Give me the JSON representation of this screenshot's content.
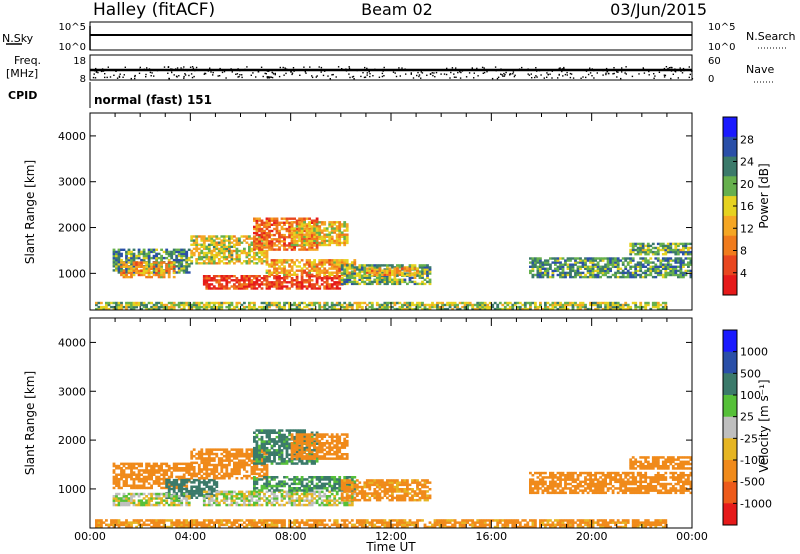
{
  "header": {
    "station": "Halley (fitACF)",
    "beam": "Beam 02",
    "date": "03/Jun/2015"
  },
  "status": {
    "nsky_label": "N.Sky",
    "nsearch_label": "N.Search",
    "nsky_ticks": [
      "10^5",
      "10^0"
    ],
    "nsearch_ticks": [
      "10^5",
      "10^0"
    ],
    "freq_label_1": "Freq.",
    "freq_label_2": "[MHz]",
    "freq_ticks": [
      "18",
      "8"
    ],
    "nave_label": "Nave",
    "nave_ticks": [
      "60",
      "0"
    ],
    "cpid_label": "CPID",
    "cpid_text": "normal (fast) 151"
  },
  "colors": {
    "power": [
      "#1a1aff",
      "#2a4fa8",
      "#3b7a6a",
      "#66b04d",
      "#e6d21f",
      "#f5a623",
      "#f07b1c",
      "#e8461f",
      "#e61a1a"
    ],
    "velocity": [
      "#1a1aff",
      "#2a4fa8",
      "#3b7a6a",
      "#56c039",
      "#bfbfbf",
      "#e6b522",
      "#f08a1a",
      "#ed5a1a",
      "#e61a1a"
    ]
  },
  "chart_data": [
    {
      "type": "heatmap",
      "xlabel": "",
      "ylabel": "Slant Range [km]",
      "x_range": [
        0,
        24
      ],
      "y_range": [
        200,
        4500
      ],
      "y_ticks": [
        "4000",
        "3000",
        "2000",
        "1000"
      ],
      "y_tick_values": [
        4000,
        3000,
        2000,
        1000
      ],
      "colorbar_label": "Power [dB]",
      "colorbar_ticks": [
        "28",
        "24",
        "20",
        "16",
        "12",
        "8",
        "4"
      ],
      "colorbar_levels": [
        28,
        24,
        20,
        16,
        12,
        8,
        4
      ],
      "colorbar_range": [
        0,
        32
      ],
      "regions": [
        {
          "t": [
            0.9,
            4.0
          ],
          "r": [
            1000,
            1500
          ],
          "value": 10
        },
        {
          "t": [
            1.2,
            3.4
          ],
          "r": [
            900,
            1250
          ],
          "value": 20
        },
        {
          "t": [
            4.0,
            7.0
          ],
          "r": [
            1200,
            1800
          ],
          "value": 16
        },
        {
          "t": [
            6.5,
            9.0
          ],
          "r": [
            1500,
            2200
          ],
          "value": 24
        },
        {
          "t": [
            4.5,
            10.0
          ],
          "r": [
            650,
            950
          ],
          "value": 28
        },
        {
          "t": [
            7.0,
            10.5
          ],
          "r": [
            950,
            1300
          ],
          "value": 20
        },
        {
          "t": [
            8.0,
            10.2
          ],
          "r": [
            1600,
            2100
          ],
          "value": 18
        },
        {
          "t": [
            10.0,
            13.5
          ],
          "r": [
            750,
            1200
          ],
          "value": 12
        },
        {
          "t": [
            11.0,
            13.0
          ],
          "r": [
            950,
            1100
          ],
          "value": 20
        },
        {
          "t": [
            17.5,
            24.0
          ],
          "r": [
            900,
            1350
          ],
          "value": 10
        },
        {
          "t": [
            21.5,
            24.0
          ],
          "r": [
            1400,
            1650
          ],
          "value": 12
        },
        {
          "t": [
            0.2,
            23.0
          ],
          "r": [
            200,
            350
          ],
          "value": 14
        }
      ]
    },
    {
      "type": "heatmap",
      "xlabel": "Time UT",
      "ylabel": "Slant Range [km]",
      "x_range": [
        0,
        24
      ],
      "y_range": [
        200,
        4500
      ],
      "x_ticks": [
        "00:00",
        "04:00",
        "08:00",
        "12:00",
        "16:00",
        "20:00",
        "00:00"
      ],
      "x_tick_values": [
        0,
        4,
        8,
        12,
        16,
        20,
        24
      ],
      "y_ticks": [
        "4000",
        "3000",
        "2000",
        "1000"
      ],
      "y_tick_values": [
        4000,
        3000,
        2000,
        1000
      ],
      "colorbar_label": "Velocity [m s⁻¹]",
      "colorbar_ticks": [
        "1000",
        "500",
        "100",
        "25",
        "-25",
        "-100",
        "-500",
        "-1000"
      ],
      "colorbar_range": [
        -1000,
        1000
      ],
      "regions": [
        {
          "t": [
            0.9,
            4.0
          ],
          "r": [
            1000,
            1500
          ],
          "value": -300
        },
        {
          "t": [
            3.0,
            5.0
          ],
          "r": [
            800,
            1200
          ],
          "value": 200
        },
        {
          "t": [
            4.0,
            7.0
          ],
          "r": [
            1200,
            1800
          ],
          "value": -200
        },
        {
          "t": [
            6.5,
            9.0
          ],
          "r": [
            1500,
            2200
          ],
          "value": 150
        },
        {
          "t": [
            0.9,
            4.0
          ],
          "r": [
            650,
            900
          ],
          "value": 0
        },
        {
          "t": [
            4.5,
            10.5
          ],
          "r": [
            650,
            950
          ],
          "value": 0
        },
        {
          "t": [
            6.5,
            10.5
          ],
          "r": [
            950,
            1250
          ],
          "value": 120
        },
        {
          "t": [
            8.0,
            10.2
          ],
          "r": [
            1600,
            2100
          ],
          "value": -300
        },
        {
          "t": [
            10.0,
            13.5
          ],
          "r": [
            750,
            1200
          ],
          "value": -150
        },
        {
          "t": [
            17.5,
            24.0
          ],
          "r": [
            900,
            1350
          ],
          "value": -200
        },
        {
          "t": [
            21.5,
            24.0
          ],
          "r": [
            1400,
            1650
          ],
          "value": -300
        },
        {
          "t": [
            0.2,
            23.0
          ],
          "r": [
            200,
            350
          ],
          "value": -150
        }
      ]
    }
  ]
}
